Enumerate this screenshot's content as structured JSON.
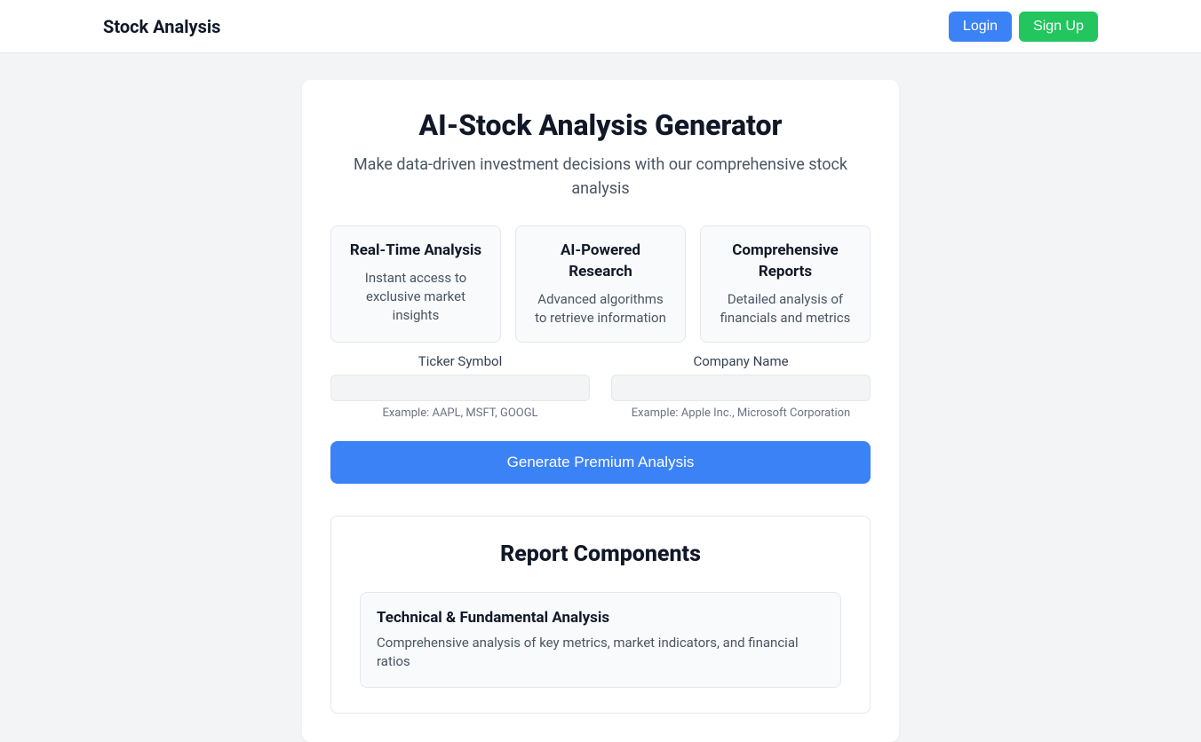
{
  "nav": {
    "brand": "Stock Analysis",
    "login": "Login",
    "signup": "Sign Up"
  },
  "hero": {
    "title": "AI-Stock Analysis Generator",
    "subtitle": "Make data-driven investment decisions with our comprehensive stock analysis"
  },
  "features": [
    {
      "title": "Real-Time Analysis",
      "desc": "Instant access to exclusive market insights"
    },
    {
      "title": "AI-Powered Research",
      "desc": "Advanced algorithms to retrieve information"
    },
    {
      "title": "Comprehensive Reports",
      "desc": "Detailed analysis of financials and metrics"
    }
  ],
  "form": {
    "ticker_label": "Ticker Symbol",
    "ticker_hint": "Example: AAPL, MSFT, GOOGL",
    "company_label": "Company Name",
    "company_hint": "Example: Apple Inc., Microsoft Corporation",
    "generate": "Generate Premium Analysis"
  },
  "report": {
    "heading": "Report Components",
    "components": [
      {
        "title": "Technical & Fundamental Analysis",
        "desc": "Comprehensive analysis of key metrics, market indicators, and financial ratios"
      }
    ]
  }
}
